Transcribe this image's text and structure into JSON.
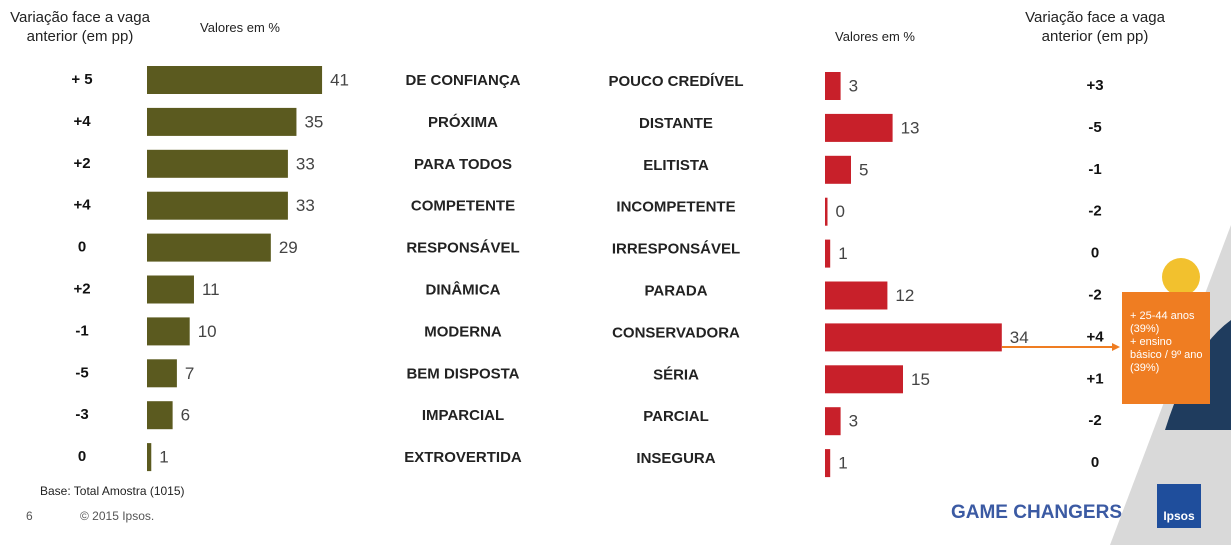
{
  "chart_data": [
    {
      "type": "bar",
      "side": "left",
      "color": "#5b5a1f",
      "change_title": "Variação face a vaga anterior (em pp)",
      "values_title": "Valores em %",
      "categories": [
        "DE CONFIANÇA",
        "PRÓXIMA",
        "PARA TODOS",
        "COMPETENTE",
        "RESPONSÁVEL",
        "DINÂMICA",
        "MODERNA",
        "BEM DISPOSTA",
        "IMPARCIAL",
        "EXTROVERTIDA"
      ],
      "values": [
        41,
        35,
        33,
        33,
        29,
        11,
        10,
        7,
        6,
        1
      ],
      "changes": [
        "+ 5",
        "+4",
        "+2",
        "+4",
        "0",
        "+2",
        "-1",
        "-5",
        "-3",
        "0"
      ]
    },
    {
      "type": "bar",
      "side": "right",
      "color": "#c8202a",
      "change_title": "Variação face a vaga anterior (em pp)",
      "values_title": "Valores em %",
      "categories": [
        "POUCO CREDÍVEL",
        "DISTANTE",
        "ELITISTA",
        "INCOMPETENTE",
        "IRRESPONSÁVEL",
        "PARADA",
        "CONSERVADORA",
        "SÉRIA",
        "PARCIAL",
        "INSEGURA"
      ],
      "values": [
        3,
        13,
        5,
        0,
        1,
        12,
        34,
        15,
        3,
        1
      ],
      "changes": [
        "+3",
        "-5",
        "-1",
        "-2",
        "0",
        "-2",
        "+4",
        "+1",
        "-2",
        "0"
      ]
    }
  ],
  "callout": [
    "+ 25-44 anos (39%)",
    "+ ensino básico / 9º ano (39%)"
  ],
  "footer": {
    "base": "Base: Total Amostra (1015)",
    "page": "6",
    "copyright": "© 2015 Ipsos.",
    "brand": "GAME CHANGERS",
    "logo": "Ipsos"
  }
}
